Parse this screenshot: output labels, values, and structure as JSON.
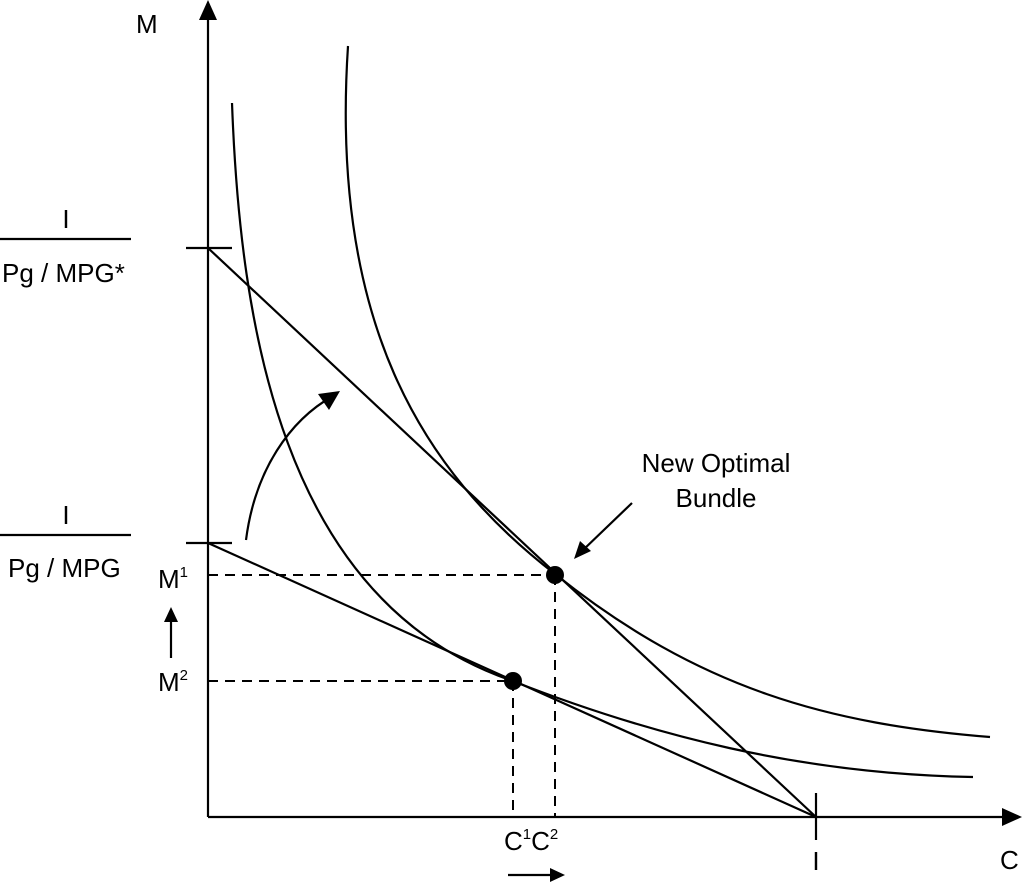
{
  "axes": {
    "y_label": "M",
    "x_label": "C"
  },
  "y_intercepts": {
    "upper": {
      "numerator": "I",
      "denominator": "Pg / MPG*"
    },
    "lower": {
      "numerator": "I",
      "denominator": "Pg / MPG"
    }
  },
  "x_intercept_label": "I",
  "m_points": {
    "m1": {
      "base": "M",
      "sup": "1"
    },
    "m2": {
      "base": "M",
      "sup": "2"
    }
  },
  "c_points": {
    "c1": {
      "base": "C",
      "sup": "1"
    },
    "c2": {
      "base": "C",
      "sup": "2"
    }
  },
  "annotation": {
    "line1": "New Optimal",
    "line2": "Bundle"
  }
}
